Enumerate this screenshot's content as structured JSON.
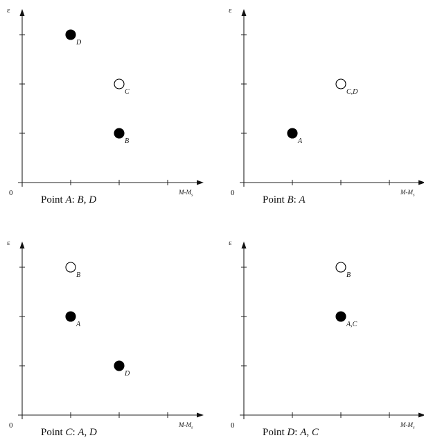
{
  "panels": [
    {
      "id": "A",
      "x_label": "M-M",
      "x_label_sub": "s",
      "y_label": "ε",
      "origin": "0",
      "caption": [
        "Point ",
        "A",
        ": ",
        "B",
        ", ",
        "D"
      ],
      "points": [
        {
          "label": "D",
          "x": 1,
          "y": 3,
          "filled": true
        },
        {
          "label": "C",
          "x": 2,
          "y": 2,
          "filled": false
        },
        {
          "label": "B",
          "x": 2,
          "y": 1,
          "filled": true
        }
      ]
    },
    {
      "id": "B",
      "x_label": "M-M",
      "x_label_sub": "s",
      "y_label": "ε",
      "origin": "0",
      "caption": [
        "Point ",
        "B",
        ": ",
        "A"
      ],
      "points": [
        {
          "label": "C,D",
          "x": 2,
          "y": 2,
          "filled": false
        },
        {
          "label": "A",
          "x": 1,
          "y": 1,
          "filled": true
        }
      ]
    },
    {
      "id": "C",
      "x_label": "M-M",
      "x_label_sub": "s",
      "y_label": "ε",
      "origin": "0",
      "caption": [
        "Point ",
        "C",
        ": ",
        "A",
        ", ",
        "D"
      ],
      "points": [
        {
          "label": "B",
          "x": 1,
          "y": 3,
          "filled": false
        },
        {
          "label": "A",
          "x": 1,
          "y": 2,
          "filled": true
        },
        {
          "label": "D",
          "x": 2,
          "y": 1,
          "filled": true
        }
      ]
    },
    {
      "id": "D",
      "x_label": "M-M",
      "x_label_sub": "s",
      "y_label": "ε",
      "origin": "0",
      "caption": [
        "Point ",
        "D",
        ": ",
        "A",
        ", ",
        "C"
      ],
      "points": [
        {
          "label": "B",
          "x": 2,
          "y": 3,
          "filled": false
        },
        {
          "label": "A,C",
          "x": 2,
          "y": 2,
          "filled": true
        }
      ]
    }
  ],
  "axis": {
    "x_ticks": [
      1,
      2,
      3
    ],
    "y_ticks": [
      1,
      2,
      3
    ]
  },
  "colors": {
    "ink": "#111111",
    "filled": "#000000",
    "hollow_fill": "#ffffff"
  }
}
